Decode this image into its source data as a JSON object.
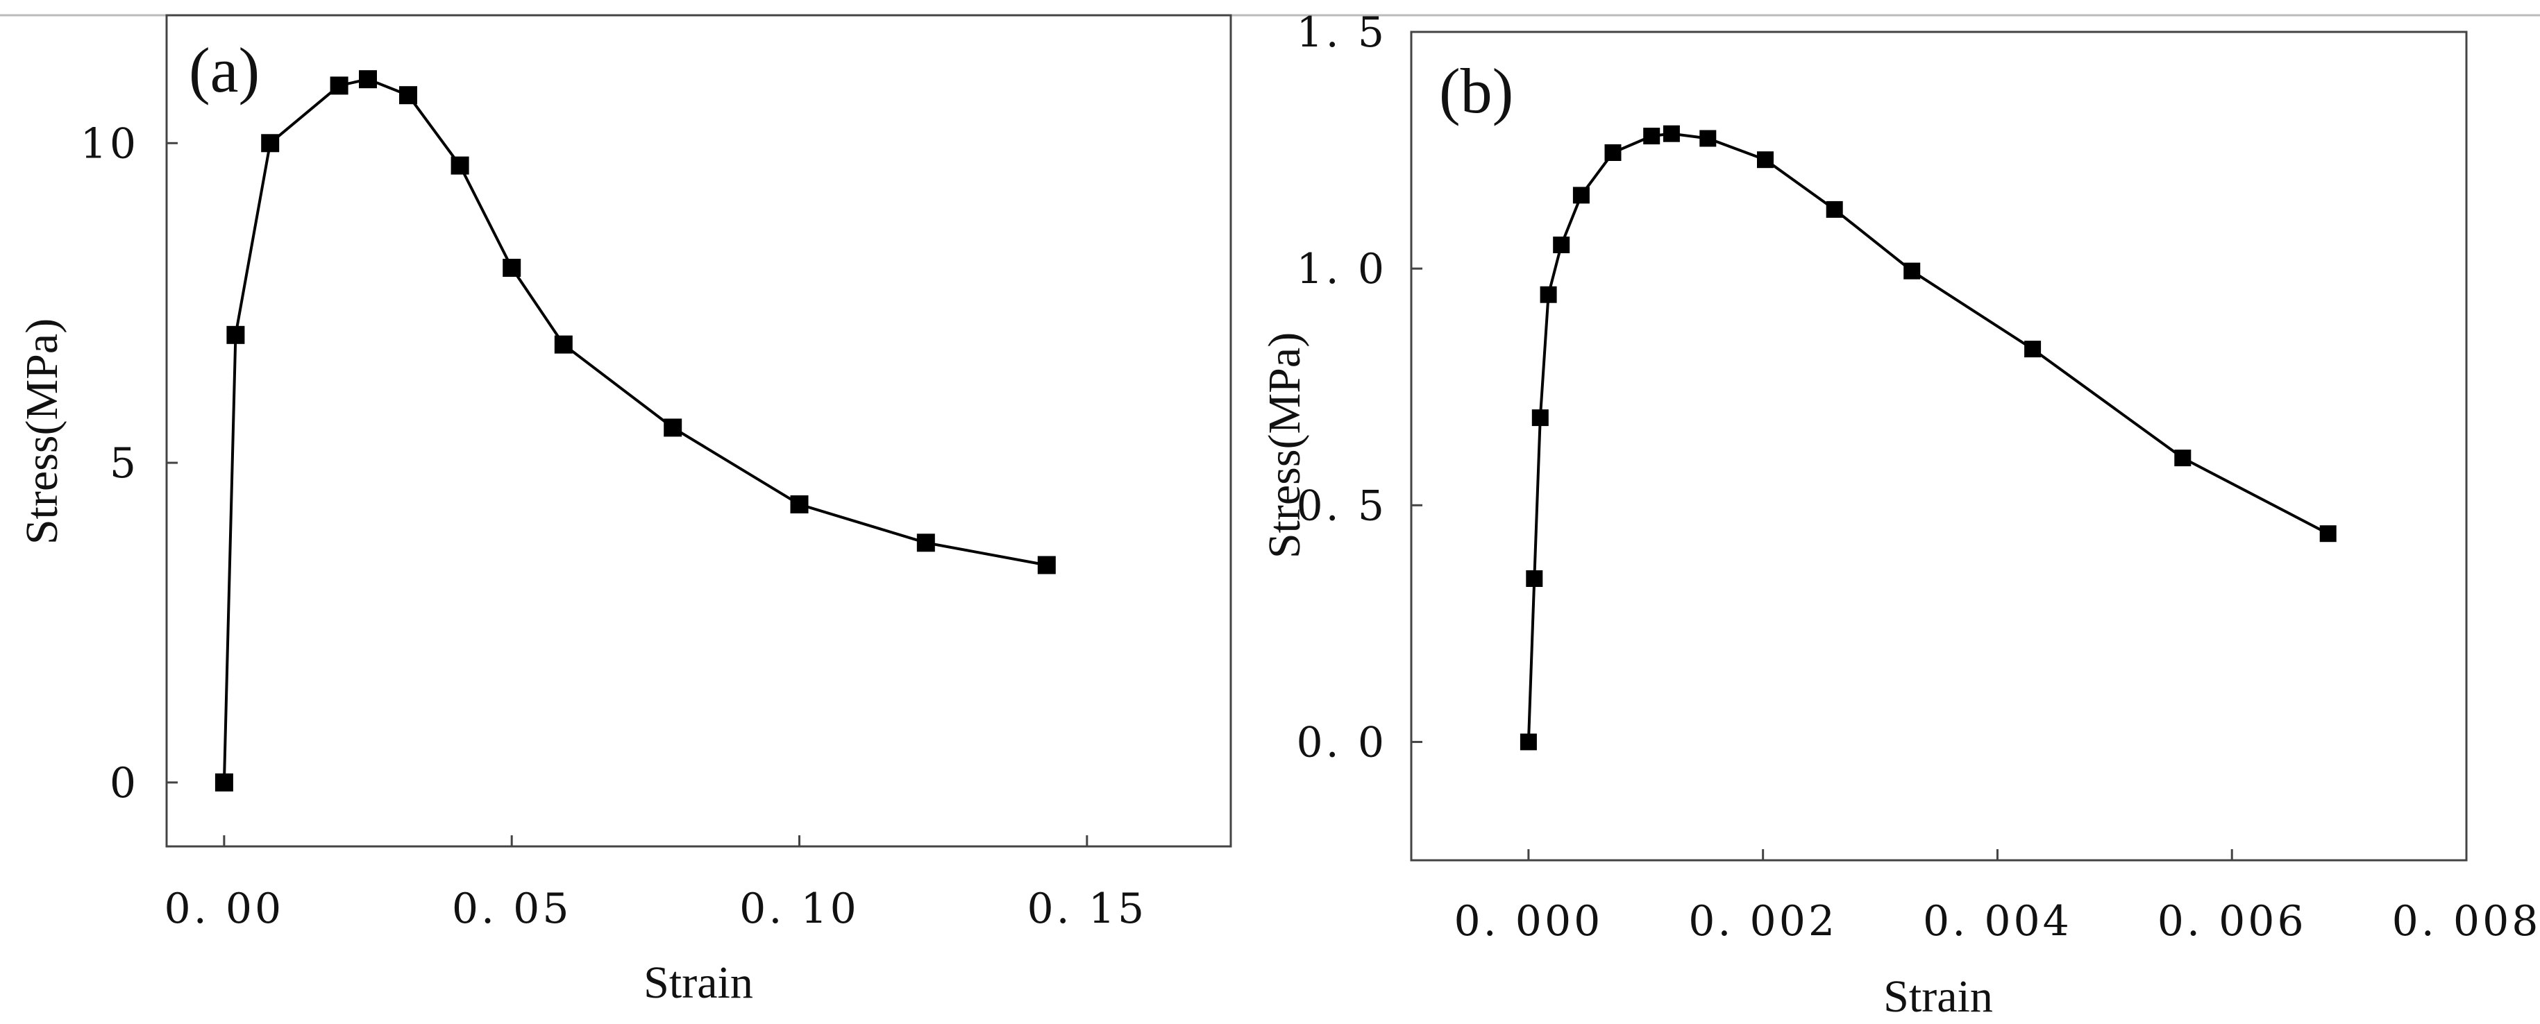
{
  "chart_data": [
    {
      "type": "line",
      "panel_label": "(a)",
      "title": "",
      "xlabel": "Strain",
      "ylabel": "Stress(MPa)",
      "xlim": [
        -0.01,
        0.175
      ],
      "ylim": [
        -1.0,
        12.0
      ],
      "xticks": [
        0.0,
        0.05,
        0.1,
        0.15
      ],
      "xtick_labels": [
        "0. 00",
        "0. 05",
        "0. 10",
        "0. 15"
      ],
      "yticks": [
        0,
        5,
        10
      ],
      "ytick_labels": [
        "0",
        "5",
        "10"
      ],
      "grid": false,
      "series": [
        {
          "name": "",
          "marker": "square",
          "x": [
            0.0,
            0.002,
            0.008,
            0.02,
            0.025,
            0.032,
            0.041,
            0.05,
            0.059,
            0.078,
            0.1,
            0.122,
            0.143
          ],
          "y": [
            0.0,
            7.0,
            10.0,
            10.9,
            11.0,
            10.75,
            9.65,
            8.05,
            6.85,
            5.55,
            4.35,
            3.75,
            3.4
          ]
        }
      ]
    },
    {
      "type": "line",
      "panel_label": "(b)",
      "title": "",
      "xlabel": "Strain",
      "ylabel": "Stress(MPa)",
      "xlim": [
        -0.001,
        0.008
      ],
      "ylim": [
        -0.25,
        1.5
      ],
      "xticks": [
        0.0,
        0.002,
        0.004,
        0.006,
        0.008
      ],
      "xtick_labels": [
        "0. 000",
        "0. 002",
        "0. 004",
        "0. 006",
        "0. 008"
      ],
      "yticks": [
        0.0,
        0.5,
        1.0,
        1.5
      ],
      "ytick_labels": [
        "0. 0",
        "0. 5",
        "1. 0",
        "1. 5"
      ],
      "grid": false,
      "series": [
        {
          "name": "",
          "marker": "square",
          "x": [
            0.0,
            5e-05,
            0.0001,
            0.00017,
            0.00028,
            0.00045,
            0.00072,
            0.00105,
            0.00122,
            0.00153,
            0.00202,
            0.00261,
            0.00327,
            0.0043,
            0.00558,
            0.00682
          ],
          "y": [
            0.0,
            0.345,
            0.685,
            0.945,
            1.05,
            1.155,
            1.245,
            1.28,
            1.285,
            1.275,
            1.23,
            1.125,
            0.995,
            0.83,
            0.6,
            0.44
          ]
        }
      ]
    }
  ]
}
